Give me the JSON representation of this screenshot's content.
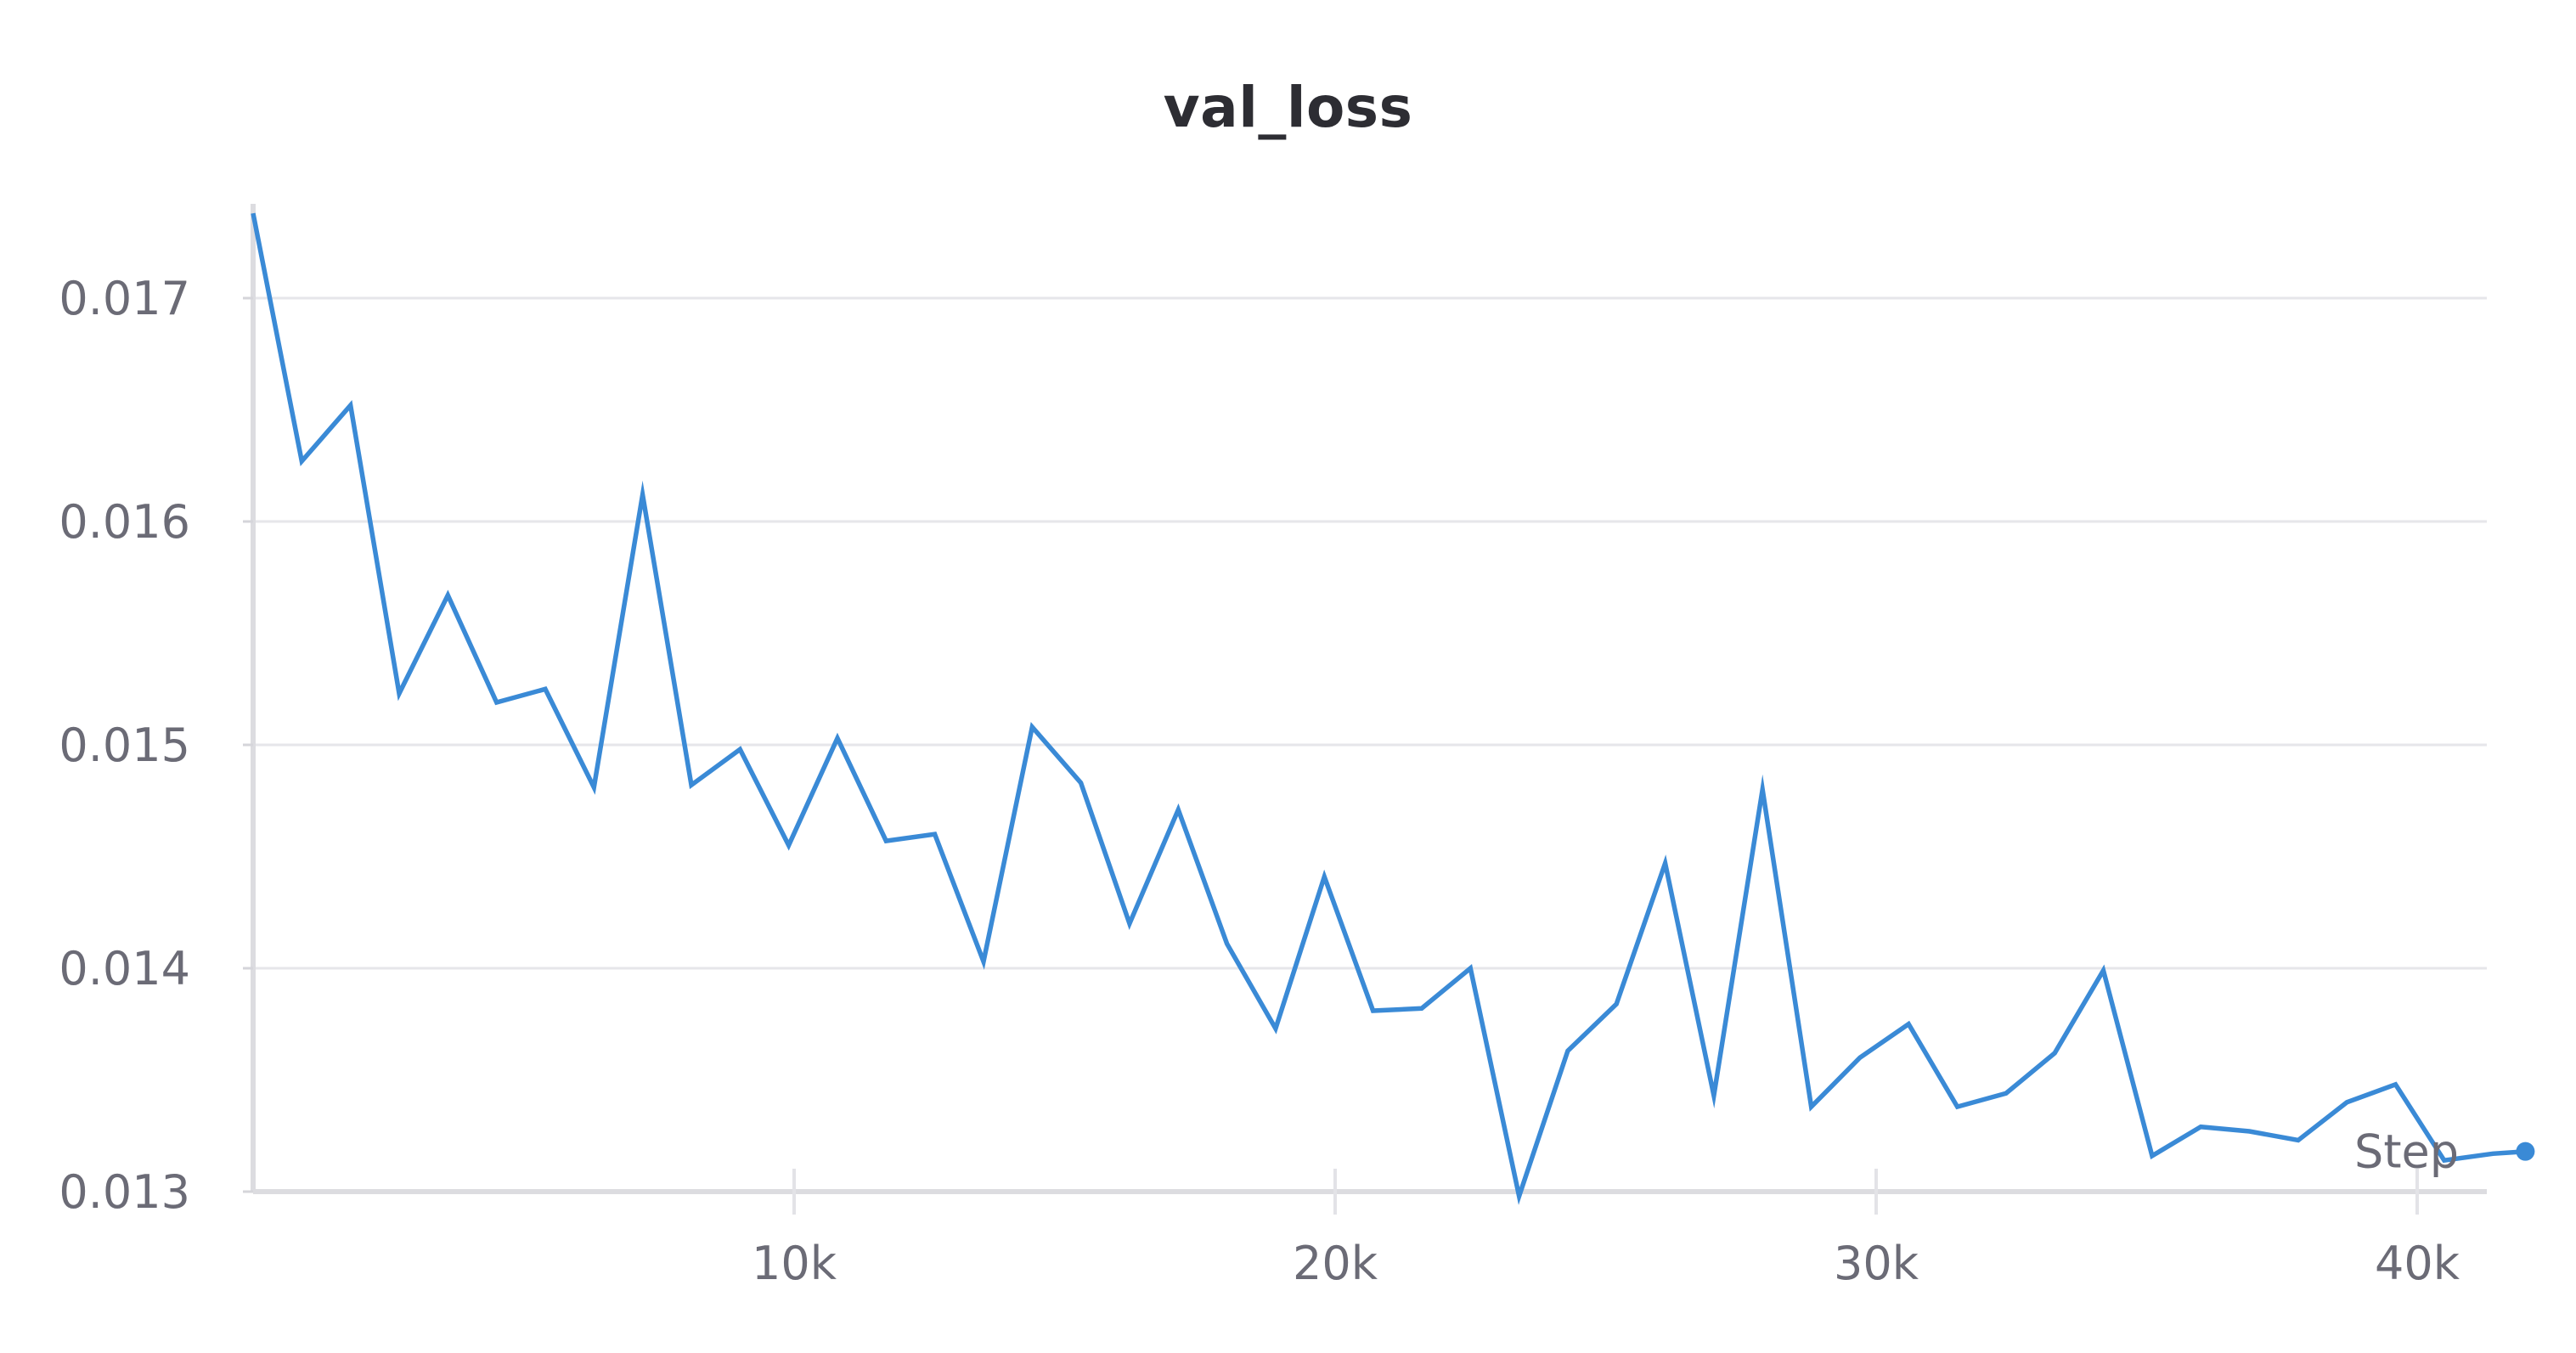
{
  "chart_data": {
    "type": "line",
    "title": "val_loss",
    "xlabel": "Step",
    "ylabel": "",
    "xlim": [
      0,
      42000
    ],
    "ylim": [
      0.013,
      0.0174
    ],
    "x_ticks": [
      10000,
      20000,
      30000,
      40000
    ],
    "x_tick_labels": [
      "10k",
      "20k",
      "30k",
      "40k"
    ],
    "y_ticks": [
      0.013,
      0.014,
      0.015,
      0.016,
      0.017
    ],
    "y_tick_labels": [
      "0.013",
      "0.014",
      "0.015",
      "0.016",
      "0.017"
    ],
    "grid": true,
    "color": "#3a8ad6",
    "series": [
      {
        "x": [
          0,
          900,
          1800,
          2700,
          3600,
          4500,
          5400,
          6300,
          7200,
          8100,
          9000,
          9900,
          10800,
          11700,
          12600,
          13500,
          14400,
          15300,
          16200,
          17100,
          18000,
          18900,
          19800,
          20700,
          21600,
          22500,
          23400,
          24300,
          25200,
          26100,
          27000,
          27900,
          28800,
          29700,
          30600,
          31500,
          32400,
          33300,
          34200,
          35100,
          36000,
          36900,
          37800,
          38700,
          39600,
          40500,
          41400,
          42000
        ],
        "y": [
          0.01738,
          0.01627,
          0.01652,
          0.01523,
          0.01567,
          0.01519,
          0.01525,
          0.01481,
          0.01612,
          0.01482,
          0.01498,
          0.01455,
          0.01503,
          0.01457,
          0.0146,
          0.01403,
          0.01508,
          0.01483,
          0.0142,
          0.01471,
          0.01411,
          0.01373,
          0.01441,
          0.01381,
          0.01382,
          0.014,
          0.01298,
          0.01363,
          0.01384,
          0.01447,
          0.01343,
          0.0148,
          0.01338,
          0.0136,
          0.01375,
          0.01338,
          0.01344,
          0.01362,
          0.01399,
          0.01316,
          0.01329,
          0.01327,
          0.01323,
          0.0134,
          0.01348,
          0.01314,
          0.01317,
          0.01318
        ]
      }
    ]
  }
}
